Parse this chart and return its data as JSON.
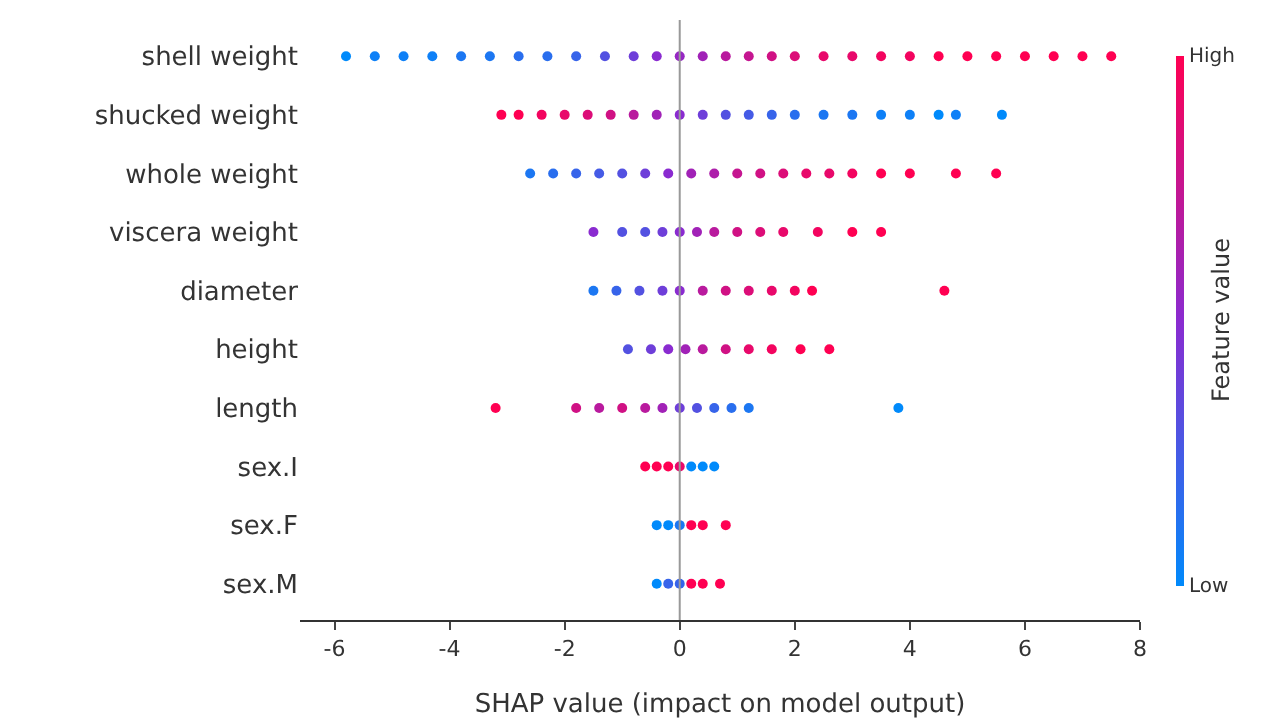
{
  "chart_data": {
    "type": "scatter",
    "orientation": "horizontal",
    "categories": [
      "shell weight",
      "shucked weight",
      "whole weight",
      "viscera weight",
      "diameter",
      "height",
      "length",
      "sex.I",
      "sex.F",
      "sex.M"
    ],
    "xlabel": "SHAP value (impact on model output)",
    "clabel": "Feature value",
    "xlim": [
      -6.6,
      8
    ],
    "xticks": [
      -6,
      -4,
      -2,
      0,
      2,
      4,
      6,
      8
    ],
    "clim": [
      0,
      1
    ],
    "cticks": [
      {
        "value": 0,
        "label": "Low"
      },
      {
        "value": 1,
        "label": "High"
      }
    ],
    "ref_lines": [
      {
        "axis": "x",
        "value": 0,
        "color": "#999999"
      }
    ],
    "grid": false,
    "marker": "circle",
    "series": [
      {
        "values": [
          -5.8,
          -3.1,
          -2.6,
          -1.5,
          -1.5,
          -0.9,
          -3.2,
          -0.6,
          -0.4,
          -0.4
        ],
        "colors": [
          "#008afb",
          "#ff0052",
          "#1c77f2",
          "#8a2bd0",
          "#1c77f2",
          "#5351e1",
          "#ff0052",
          "#ff0052",
          "#008afb",
          "#008afb"
        ]
      },
      {
        "values": [
          -5.3,
          -2.8,
          -2.2,
          -1,
          -1.1,
          -0.5,
          -1.8,
          -0.4,
          -0.2,
          -0.2
        ],
        "colors": [
          "#0e80f7",
          "#ff0052",
          "#296eee",
          "#5351e1",
          "#3764ea",
          "#6e3ed9",
          "#d01184",
          "#ff0052",
          "#008afb",
          "#3764ea"
        ]
      },
      {
        "values": [
          -4.8,
          -2.4,
          -1.8,
          -0.6,
          -0.7,
          -0.2,
          -1.4,
          -0.2,
          0,
          0
        ],
        "colors": [
          "#0e80f7",
          "#f3045f",
          "#3764ea",
          "#5351e1",
          "#5351e1",
          "#8a2bd0",
          "#b91a9e",
          "#ff0052",
          "#1c77f2",
          "#3764ea"
        ]
      },
      {
        "values": [
          -4.3,
          -2,
          -1.4,
          -0.3,
          -0.3,
          0.1,
          -1,
          0,
          0.2,
          0.2
        ],
        "colors": [
          "#0e80f7",
          "#e8096b",
          "#455be6",
          "#6e3ed9",
          "#6e3ed9",
          "#a122b7",
          "#d01184",
          "#e8096b",
          "#ff0052",
          "#ff0052"
        ]
      },
      {
        "values": [
          -3.8,
          -1.6,
          -1,
          0,
          0,
          0.4,
          -0.6,
          0.2,
          0.4,
          0.4
        ],
        "colors": [
          "#1c77f2",
          "#dc0d78",
          "#5351e1",
          "#8a2bd0",
          "#8a2bd0",
          "#b91a9e",
          "#b91a9e",
          "#008afb",
          "#ff0052",
          "#ff0052"
        ]
      },
      {
        "values": [
          -3.3,
          -1.2,
          -0.6,
          0.3,
          0.4,
          0.8,
          -0.3,
          0.4,
          0.8,
          0.7
        ],
        "colors": [
          "#1c77f2",
          "#d01184",
          "#6e3ed9",
          "#a122b7",
          "#b91a9e",
          "#d01184",
          "#a122b7",
          "#008afb",
          "#ff0052",
          "#ff0052"
        ]
      },
      {
        "values": [
          -2.8,
          -0.8,
          -0.2,
          0.6,
          0.8,
          1.2,
          0,
          0.6,
          null,
          null
        ],
        "colors": [
          "#296eee",
          "#b91a9e",
          "#8a2bd0",
          "#b91a9e",
          "#d01184",
          "#e8096b",
          "#6e3ed9",
          "#008afb",
          null,
          null
        ]
      },
      {
        "values": [
          -2.3,
          -0.4,
          0.2,
          1,
          1.2,
          1.6,
          0.3,
          null,
          null,
          null
        ],
        "colors": [
          "#296eee",
          "#a122b7",
          "#a122b7",
          "#d01184",
          "#dc0d78",
          "#f3045f",
          "#5351e1",
          null,
          null,
          null
        ]
      },
      {
        "values": [
          -1.8,
          0,
          0.6,
          1.4,
          1.6,
          2.1,
          0.6,
          null,
          null,
          null
        ],
        "colors": [
          "#3764ea",
          "#8a2bd0",
          "#ad1eaa",
          "#dc0d78",
          "#e8096b",
          "#ff0052",
          "#3764ea",
          null,
          null,
          null
        ]
      },
      {
        "values": [
          -1.3,
          0.4,
          1,
          1.8,
          2,
          2.6,
          0.9,
          null,
          null,
          null
        ],
        "colors": [
          "#5351e1",
          "#6e3ed9",
          "#c51691",
          "#e8096b",
          "#f3045f",
          "#ff0052",
          "#296eee",
          null,
          null,
          null
        ]
      },
      {
        "values": [
          -0.8,
          0.8,
          1.4,
          2.4,
          2.3,
          null,
          1.2,
          null,
          null,
          null
        ],
        "colors": [
          "#6e3ed9",
          "#5351e1",
          "#d01184",
          "#f3045f",
          "#ff0052",
          null,
          "#1c77f2",
          null,
          null,
          null
        ]
      },
      {
        "values": [
          -0.4,
          1.2,
          1.8,
          3,
          4.6,
          null,
          3.8,
          null,
          null,
          null
        ],
        "colors": [
          "#8a2bd0",
          "#455be6",
          "#dc0d78",
          "#ff0052",
          "#ff0052",
          null,
          "#008afb",
          null,
          null,
          null
        ]
      },
      {
        "values": [
          0,
          1.6,
          2.2,
          3.5,
          null,
          null,
          null,
          null,
          null,
          null
        ],
        "colors": [
          "#9627c3",
          "#3764ea",
          "#e8096b",
          "#ff0052",
          null,
          null,
          null,
          null,
          null,
          null
        ]
      },
      {
        "values": [
          0.4,
          2,
          2.6,
          null,
          null,
          null,
          null,
          null,
          null,
          null
        ],
        "colors": [
          "#a122b7",
          "#296eee",
          "#e8096b",
          null,
          null,
          null,
          null,
          null,
          null,
          null
        ]
      },
      {
        "values": [
          0.8,
          2.5,
          3,
          null,
          null,
          null,
          null,
          null,
          null,
          null
        ],
        "colors": [
          "#b91a9e",
          "#1c77f2",
          "#f3045f",
          null,
          null,
          null,
          null,
          null,
          null,
          null
        ]
      },
      {
        "values": [
          1.2,
          3,
          3.5,
          null,
          null,
          null,
          null,
          null,
          null,
          null
        ],
        "colors": [
          "#c51691",
          "#1c77f2",
          "#ff0052",
          null,
          null,
          null,
          null,
          null,
          null,
          null
        ]
      },
      {
        "values": [
          1.6,
          3.5,
          4,
          null,
          null,
          null,
          null,
          null,
          null,
          null
        ],
        "colors": [
          "#d01184",
          "#0e80f7",
          "#ff0052",
          null,
          null,
          null,
          null,
          null,
          null,
          null
        ]
      },
      {
        "values": [
          2,
          4,
          4.8,
          null,
          null,
          null,
          null,
          null,
          null,
          null
        ],
        "colors": [
          "#dc0d78",
          "#0e80f7",
          "#ff0052",
          null,
          null,
          null,
          null,
          null,
          null,
          null
        ]
      },
      {
        "values": [
          2.5,
          4.5,
          5.5,
          null,
          null,
          null,
          null,
          null,
          null,
          null
        ],
        "colors": [
          "#e8096b",
          "#008afb",
          "#ff0052",
          null,
          null,
          null,
          null,
          null,
          null,
          null
        ]
      },
      {
        "values": [
          3,
          4.8,
          null,
          null,
          null,
          null,
          null,
          null,
          null,
          null
        ],
        "colors": [
          "#e8096b",
          "#0e80f7",
          null,
          null,
          null,
          null,
          null,
          null,
          null,
          null
        ]
      },
      {
        "values": [
          3.5,
          5.6,
          null,
          null,
          null,
          null,
          null,
          null,
          null,
          null
        ],
        "colors": [
          "#f3045f",
          "#008afb",
          null,
          null,
          null,
          null,
          null,
          null,
          null,
          null
        ]
      },
      {
        "values": [
          4,
          null,
          null,
          null,
          null,
          null,
          null,
          null,
          null,
          null
        ],
        "colors": [
          "#f3045f",
          null,
          null,
          null,
          null,
          null,
          null,
          null,
          null,
          null
        ]
      },
      {
        "values": [
          4.5,
          null,
          null,
          null,
          null,
          null,
          null,
          null,
          null,
          null
        ],
        "colors": [
          "#ff0052",
          null,
          null,
          null,
          null,
          null,
          null,
          null,
          null,
          null
        ]
      },
      {
        "values": [
          5,
          null,
          null,
          null,
          null,
          null,
          null,
          null,
          null,
          null
        ],
        "colors": [
          "#ff0052",
          null,
          null,
          null,
          null,
          null,
          null,
          null,
          null,
          null
        ]
      },
      {
        "values": [
          5.5,
          null,
          null,
          null,
          null,
          null,
          null,
          null,
          null,
          null
        ],
        "colors": [
          "#ff0052",
          null,
          null,
          null,
          null,
          null,
          null,
          null,
          null,
          null
        ]
      },
      {
        "values": [
          6,
          null,
          null,
          null,
          null,
          null,
          null,
          null,
          null,
          null
        ],
        "colors": [
          "#ff0052",
          null,
          null,
          null,
          null,
          null,
          null,
          null,
          null,
          null
        ]
      },
      {
        "values": [
          6.5,
          null,
          null,
          null,
          null,
          null,
          null,
          null,
          null,
          null
        ],
        "colors": [
          "#ff0052",
          null,
          null,
          null,
          null,
          null,
          null,
          null,
          null,
          null
        ]
      },
      {
        "values": [
          7,
          null,
          null,
          null,
          null,
          null,
          null,
          null,
          null,
          null
        ],
        "colors": [
          "#ff0052",
          null,
          null,
          null,
          null,
          null,
          null,
          null,
          null,
          null
        ]
      },
      {
        "values": [
          7.5,
          null,
          null,
          null,
          null,
          null,
          null,
          null,
          null,
          null
        ],
        "colors": [
          "#ff0052",
          null,
          null,
          null,
          null,
          null,
          null,
          null,
          null,
          null
        ]
      }
    ]
  }
}
